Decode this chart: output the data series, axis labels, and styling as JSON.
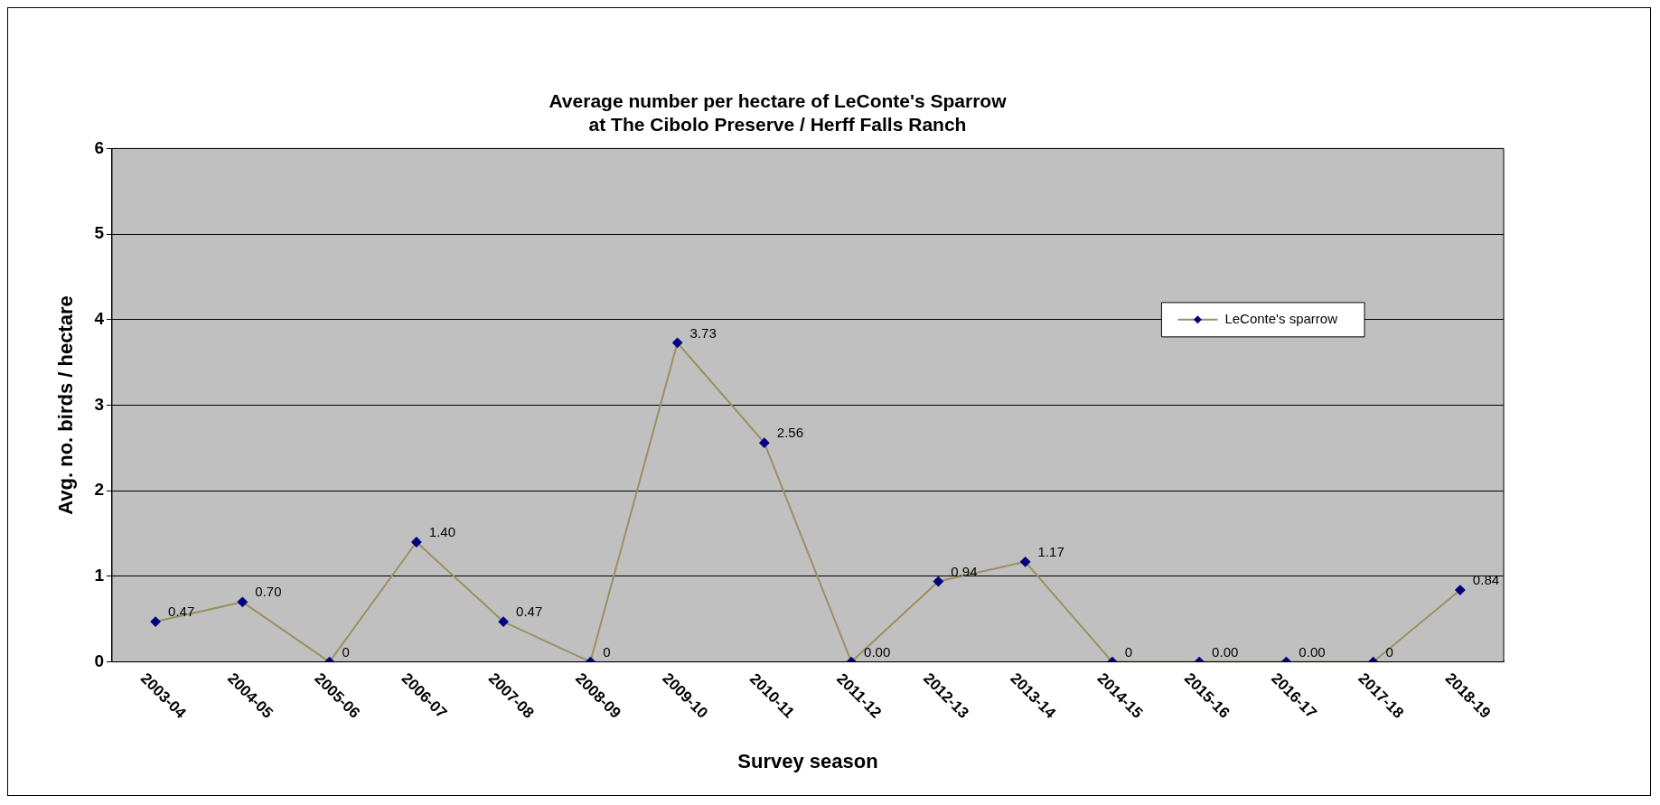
{
  "chart_data": {
    "type": "line",
    "title": "Average number per hectare of LeConte's Sparrow\nat The Cibolo Preserve / Herff Falls Ranch",
    "xlabel": "Survey season",
    "ylabel": "Avg. no. birds / hectare",
    "categories": [
      "2003-04",
      "2004-05",
      "2005-06",
      "2006-07",
      "2007-08",
      "2008-09",
      "2009-10",
      "2010-11",
      "2011-12",
      "2012-13",
      "2013-14",
      "2014-15",
      "2015-16",
      "2016-17",
      "2017-18",
      "2018-19"
    ],
    "series": [
      {
        "name": "LeConte's sparrow",
        "color": "#9c9060",
        "values": [
          0.47,
          0.7,
          0,
          1.4,
          0.47,
          0,
          3.73,
          2.56,
          0,
          0.94,
          1.17,
          0,
          0,
          0,
          0,
          0.84
        ],
        "value_labels": [
          "0.47",
          "0.70",
          "0",
          "1.40",
          "0.47",
          "0",
          "3.73",
          "2.56",
          "0.00",
          "0.94",
          "1.17",
          "0",
          "0.00",
          "0.00",
          "0",
          "0.84"
        ]
      }
    ],
    "ylim": [
      0,
      6
    ],
    "yticks": [
      0,
      1,
      2,
      3,
      4,
      5,
      6
    ],
    "grid": "y",
    "legend": "right",
    "marker": "diamond",
    "line_style": "solid"
  }
}
